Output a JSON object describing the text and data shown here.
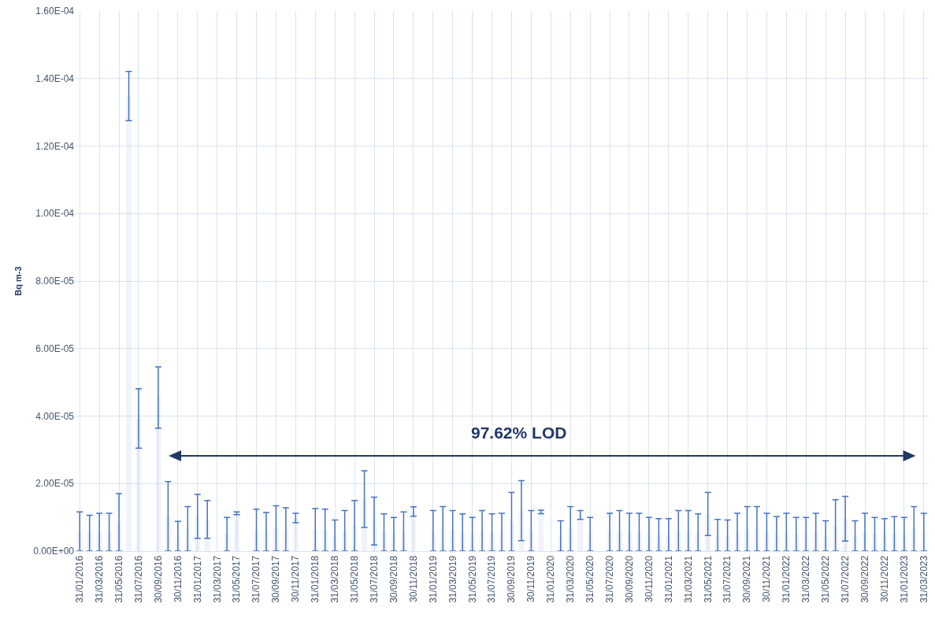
{
  "chart_data": {
    "type": "bar",
    "ylabel": "Bq m-3",
    "annotations": [
      "97.62% LOD"
    ],
    "grid": true,
    "categories": [
      "31/01/2016",
      null,
      "31/03/2016",
      null,
      "31/05/2016",
      null,
      "31/07/2016",
      null,
      "30/09/2016",
      null,
      "30/11/2016",
      null,
      "31/01/2017",
      null,
      "31/03/2017",
      null,
      "31/05/2017",
      null,
      "31/07/2017",
      null,
      "30/09/2017",
      null,
      "30/11/2017",
      null,
      "31/01/2018",
      null,
      "31/03/2018",
      null,
      "31/05/2018",
      null,
      "31/07/2018",
      null,
      "30/09/2018",
      null,
      "30/11/2018",
      null,
      "31/01/2019",
      null,
      "31/03/2019",
      null,
      "31/05/2019",
      null,
      "31/07/2019",
      null,
      "30/09/2019",
      null,
      "30/11/2019",
      null,
      "31/01/2020",
      null,
      "31/03/2020",
      null,
      "31/05/2020",
      null,
      "31/07/2020",
      null,
      "30/09/2020",
      null,
      "30/11/2020",
      null,
      "31/01/2021",
      null,
      "31/03/2021",
      null,
      "31/05/2021",
      null,
      "31/07/2021",
      null,
      "30/09/2021",
      null,
      "30/11/2021",
      null,
      "31/01/2022",
      null,
      "31/03/2022",
      null,
      "31/05/2022",
      null,
      "31/07/2022",
      null,
      "30/09/2022",
      null,
      "30/11/2022",
      null,
      "31/01/2023",
      null,
      "31/03/2023"
    ],
    "series": [
      {
        "color": "#4472c4",
        "values": [
          5.8e-06,
          5.3e-06,
          5.6e-06,
          5.6e-06,
          8.5e-06,
          0.0001348,
          3.93e-05,
          null,
          4.55e-05,
          1.03e-05,
          4.4e-06,
          6.6e-06,
          1.03e-05,
          9.4e-06,
          null,
          5e-06,
          1.12e-05,
          null,
          6.2e-06,
          5.7e-06,
          6.7e-06,
          6.4e-06,
          9.8e-06,
          null,
          6.3e-06,
          6.2e-06,
          4.6e-06,
          6e-06,
          7.5e-06,
          1.54e-05,
          8.9e-06,
          5.5e-06,
          5e-06,
          5.8e-06,
          1.17e-05,
          null,
          6e-06,
          6.6e-06,
          6e-06,
          5.5e-06,
          5e-06,
          6e-06,
          5.5e-06,
          5.6e-06,
          8.7e-06,
          1.2e-05,
          6e-06,
          1.16e-05,
          null,
          4.5e-06,
          6.6e-06,
          1.07e-05,
          5e-06,
          null,
          5.6e-06,
          6e-06,
          5.6e-06,
          5.6e-06,
          5e-06,
          4.8e-06,
          4.8e-06,
          6e-06,
          6e-06,
          5.5e-06,
          1.1e-05,
          4.7e-06,
          4.6e-06,
          5.6e-06,
          6.6e-06,
          6.6e-06,
          5.6e-06,
          5.1e-06,
          5.6e-06,
          5e-06,
          5e-06,
          5.6e-06,
          4.5e-06,
          7.6e-06,
          9.6e-06,
          4.5e-06,
          5.6e-06,
          5e-06,
          4.8e-06,
          5.1e-06,
          5e-06,
          6.6e-06,
          5.6e-06
        ],
        "errors": [
          5.8e-06,
          5.3e-06,
          5.6e-06,
          5.6e-06,
          8.5e-06,
          7.3e-06,
          8.8e-06,
          null,
          9.1e-06,
          1.03e-05,
          4.4e-06,
          6.6e-06,
          6.5e-06,
          5.6e-06,
          null,
          5e-06,
          4e-07,
          null,
          6.2e-06,
          5.7e-06,
          6.7e-06,
          6.4e-06,
          1.4e-06,
          null,
          6.3e-06,
          6.2e-06,
          4.6e-06,
          6e-06,
          7.5e-06,
          8.4e-06,
          7.1e-06,
          5.5e-06,
          5e-06,
          5.8e-06,
          1.4e-06,
          null,
          6e-06,
          6.6e-06,
          6e-06,
          5.5e-06,
          5e-06,
          6e-06,
          5.5e-06,
          5.6e-06,
          8.7e-06,
          8.9e-06,
          6e-06,
          5e-07,
          null,
          4.5e-06,
          6.6e-06,
          1.3e-06,
          5e-06,
          null,
          5.6e-06,
          6e-06,
          5.6e-06,
          5.6e-06,
          5e-06,
          4.8e-06,
          4.8e-06,
          6e-06,
          6e-06,
          5.5e-06,
          6.4e-06,
          4.7e-06,
          4.6e-06,
          5.6e-06,
          6.6e-06,
          6.6e-06,
          5.6e-06,
          5.1e-06,
          5.6e-06,
          5e-06,
          5e-06,
          5.6e-06,
          4.5e-06,
          7.6e-06,
          6.6e-06,
          4.5e-06,
          5.6e-06,
          5e-06,
          4.8e-06,
          5.1e-06,
          5e-06,
          6.6e-06,
          5.6e-06
        ]
      }
    ],
    "ylim": [
      0,
      0.00016
    ],
    "yticks": [
      {
        "value": 0,
        "label": "0.00E+00"
      },
      {
        "value": 2e-05,
        "label": "2.00E-05"
      },
      {
        "value": 4e-05,
        "label": "4.00E-05"
      },
      {
        "value": 6e-05,
        "label": "6.00E-05"
      },
      {
        "value": 8e-05,
        "label": "8.00E-05"
      },
      {
        "value": 0.0001,
        "label": "1.00E-04"
      },
      {
        "value": 0.00012,
        "label": "1.20E-04"
      },
      {
        "value": 0.00014,
        "label": "1.40E-04"
      },
      {
        "value": 0.00016,
        "label": "1.60E-04"
      }
    ]
  }
}
